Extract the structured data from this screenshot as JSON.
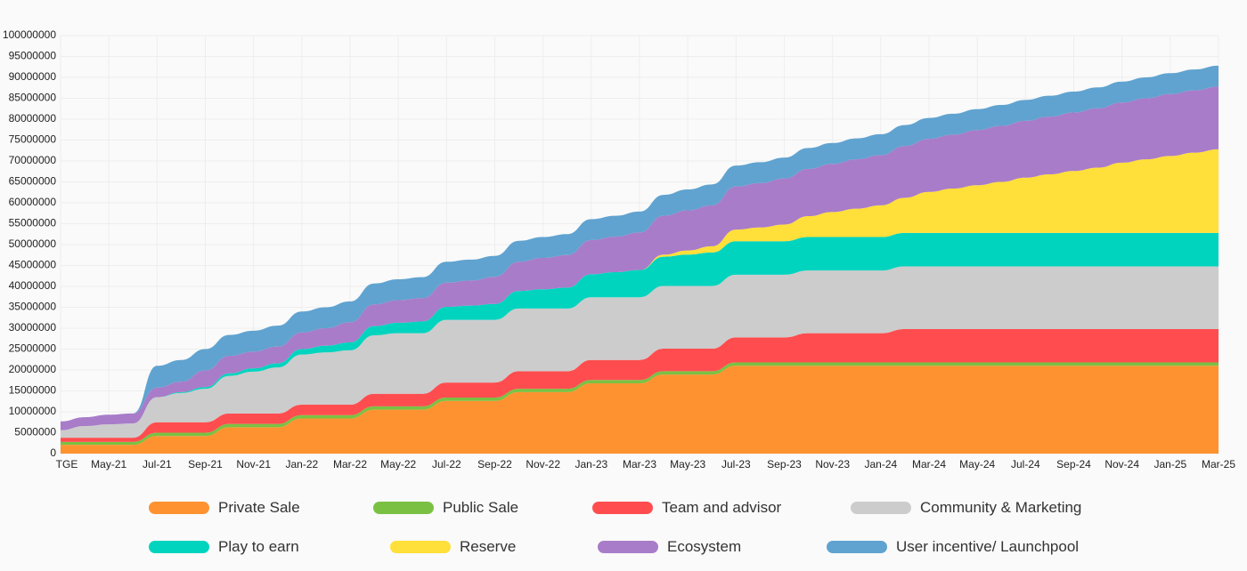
{
  "chart_data": {
    "type": "area",
    "stacked": true,
    "title": "",
    "xlabel": "",
    "ylabel": "",
    "ylim": [
      0,
      100000000
    ],
    "yticks": [
      0,
      5000000,
      10000000,
      15000000,
      20000000,
      25000000,
      30000000,
      35000000,
      40000000,
      45000000,
      50000000,
      55000000,
      60000000,
      65000000,
      70000000,
      75000000,
      80000000,
      85000000,
      90000000,
      95000000,
      100000000
    ],
    "ytick_labels": [
      "0",
      "5000000",
      "10000000",
      "15000000",
      "20000000",
      "25000000",
      "30000000",
      "35000000",
      "40000000",
      "45000000",
      "50000000",
      "55000000",
      "60000000",
      "65000000",
      "70000000",
      "75000000",
      "80000000",
      "85000000",
      "90000000",
      "95000000",
      "100000000"
    ],
    "grid": true,
    "legend_position": "bottom",
    "x": [
      "TGE",
      "Apr-21",
      "May-21",
      "Jun-21",
      "Jul-21",
      "Aug-21",
      "Sep-21",
      "Oct-21",
      "Nov-21",
      "Dec-21",
      "Jan-22",
      "Feb-22",
      "Mar-22",
      "Apr-22",
      "May-22",
      "Jun-22",
      "Jul-22",
      "Aug-22",
      "Sep-22",
      "Oct-22",
      "Nov-22",
      "Dec-22",
      "Jan-23",
      "Feb-23",
      "Mar-23",
      "Apr-23",
      "May-23",
      "Jun-23",
      "Jul-23",
      "Aug-23",
      "Sep-23",
      "Oct-23",
      "Nov-23",
      "Dec-23",
      "Jan-24",
      "Feb-24",
      "Mar-24",
      "Apr-24",
      "May-24",
      "Jun-24",
      "Jul-24",
      "Aug-24",
      "Sep-24",
      "Oct-24",
      "Nov-24",
      "Dec-24",
      "Jan-25",
      "Feb-25",
      "Mar-25"
    ],
    "xtick_labels": [
      "TGE",
      "May-21",
      "Jul-21",
      "Sep-21",
      "Nov-21",
      "Jan-22",
      "Mar-22",
      "May-22",
      "Jul-22",
      "Sep-22",
      "Nov-22",
      "Jan-23",
      "Mar-23",
      "May-23",
      "Jul-23",
      "Sep-23",
      "Nov-23",
      "Jan-24",
      "Mar-24",
      "May-24",
      "Jul-24",
      "Sep-24",
      "Nov-24",
      "Jan-25",
      "Mar-25"
    ],
    "series": [
      {
        "name": "Private Sale",
        "color": "#ff9230",
        "values": [
          2100000,
          2100000,
          2100000,
          2100000,
          4200000,
          4200000,
          4200000,
          6300000,
          6300000,
          6300000,
          8400000,
          8400000,
          8400000,
          10500000,
          10500000,
          10500000,
          12600000,
          12600000,
          12600000,
          14700000,
          14700000,
          14700000,
          16800000,
          16800000,
          16800000,
          18900000,
          18900000,
          18900000,
          21000000,
          21000000,
          21000000,
          21000000,
          21000000,
          21000000,
          21000000,
          21000000,
          21000000,
          21000000,
          21000000,
          21000000,
          21000000,
          21000000,
          21000000,
          21000000,
          21000000,
          21000000,
          21000000,
          21000000,
          21000000
        ]
      },
      {
        "name": "Public Sale",
        "color": "#7ac143",
        "values": [
          700000,
          700000,
          700000,
          700000,
          800000,
          800000,
          800000,
          800000,
          800000,
          800000,
          800000,
          800000,
          800000,
          800000,
          800000,
          800000,
          800000,
          800000,
          800000,
          800000,
          800000,
          800000,
          800000,
          800000,
          800000,
          800000,
          800000,
          800000,
          800000,
          800000,
          800000,
          800000,
          800000,
          800000,
          800000,
          800000,
          800000,
          800000,
          800000,
          800000,
          800000,
          800000,
          800000,
          800000,
          800000,
          800000,
          800000,
          800000,
          800000
        ]
      },
      {
        "name": "Team and advisor",
        "color": "#ff4d4f",
        "values": [
          1000000,
          1000000,
          1000000,
          1000000,
          2500000,
          2500000,
          2500000,
          2500000,
          2500000,
          2500000,
          2500000,
          2500000,
          2500000,
          3000000,
          3000000,
          3000000,
          3600000,
          3600000,
          3600000,
          4200000,
          4200000,
          4200000,
          4800000,
          4800000,
          4800000,
          5400000,
          5400000,
          5400000,
          6000000,
          6000000,
          6000000,
          7000000,
          7000000,
          7000000,
          7000000,
          8000000,
          8000000,
          8000000,
          8000000,
          8000000,
          8000000,
          8000000,
          8000000,
          8000000,
          8000000,
          8000000,
          8000000,
          8000000,
          8000000
        ]
      },
      {
        "name": "Community & Marketing",
        "color": "#cccccc",
        "values": [
          1800000,
          2800000,
          3200000,
          3400000,
          6000000,
          7000000,
          8000000,
          9000000,
          10000000,
          11000000,
          12000000,
          12500000,
          13000000,
          14000000,
          14500000,
          14500000,
          15000000,
          15000000,
          15000000,
          15000000,
          15000000,
          15000000,
          15000000,
          15000000,
          15000000,
          15000000,
          15000000,
          15000000,
          15000000,
          15000000,
          15000000,
          15000000,
          15000000,
          15000000,
          15000000,
          15000000,
          15000000,
          15000000,
          15000000,
          15000000,
          15000000,
          15000000,
          15000000,
          15000000,
          15000000,
          15000000,
          15000000,
          15000000,
          15000000
        ]
      },
      {
        "name": "Play to earn",
        "color": "#00d4be",
        "values": [
          0,
          0,
          0,
          0,
          0,
          200000,
          400000,
          600000,
          800000,
          1000000,
          1300000,
          1600000,
          1900000,
          2200000,
          2500000,
          2800000,
          3100000,
          3400000,
          3800000,
          4200000,
          4600000,
          5000000,
          5500000,
          6000000,
          6500000,
          7000000,
          7500000,
          8000000,
          8000000,
          8000000,
          8000000,
          8000000,
          8000000,
          8000000,
          8000000,
          8000000,
          8000000,
          8000000,
          8000000,
          8000000,
          8000000,
          8000000,
          8000000,
          8000000,
          8000000,
          8000000,
          8000000,
          8000000,
          8000000
        ]
      },
      {
        "name": "Reserve",
        "color": "#ffdf3a",
        "values": [
          0,
          0,
          0,
          0,
          0,
          0,
          0,
          0,
          0,
          0,
          0,
          0,
          0,
          0,
          0,
          0,
          0,
          0,
          0,
          0,
          0,
          0,
          0,
          0,
          0,
          500000,
          1000000,
          1500000,
          2800000,
          3300000,
          4000000,
          5000000,
          6000000,
          6800000,
          7600000,
          8400000,
          9800000,
          10600000,
          11400000,
          12200000,
          13200000,
          14000000,
          14800000,
          15600000,
          16800000,
          17600000,
          18400000,
          19200000,
          20000000
        ]
      },
      {
        "name": "Ecosystem",
        "color": "#a87cc9",
        "values": [
          2100000,
          2100000,
          2300000,
          2400000,
          2300000,
          2500000,
          4000000,
          4200000,
          4000000,
          4000000,
          4000000,
          4200000,
          4800000,
          5200000,
          5400000,
          5600000,
          5800000,
          6000000,
          6500000,
          7000000,
          7500000,
          7800000,
          8200000,
          8500000,
          9000000,
          9300000,
          9600000,
          9800000,
          10300000,
          10600000,
          11000000,
          11300000,
          11500000,
          11800000,
          12000000,
          12400000,
          12700000,
          12900000,
          13200000,
          13400000,
          13600000,
          13800000,
          14000000,
          14200000,
          14400000,
          14600000,
          14800000,
          14900000,
          15000000
        ]
      },
      {
        "name": "User incentive/ Launchpool",
        "color": "#60a3d0",
        "values": [
          0,
          0,
          0,
          0,
          5200000,
          5200000,
          5100000,
          5000000,
          5000000,
          5000000,
          5000000,
          5000000,
          5000000,
          5000000,
          5000000,
          5000000,
          5000000,
          5000000,
          5000000,
          5000000,
          5000000,
          5000000,
          5000000,
          5000000,
          5000000,
          5000000,
          5000000,
          5000000,
          5000000,
          5000000,
          5000000,
          5000000,
          5000000,
          5000000,
          5000000,
          5000000,
          5000000,
          5000000,
          5000000,
          5000000,
          5000000,
          5000000,
          5000000,
          5000000,
          5000000,
          5000000,
          5000000,
          5000000,
          5000000
        ]
      }
    ]
  },
  "legend": [
    {
      "label": "Private Sale",
      "color": "#ff9230"
    },
    {
      "label": "Public Sale",
      "color": "#7ac143"
    },
    {
      "label": "Team and advisor",
      "color": "#ff4d4f"
    },
    {
      "label": "Community & Marketing",
      "color": "#cccccc"
    },
    {
      "label": "Play to earn",
      "color": "#00d4be"
    },
    {
      "label": "Reserve",
      "color": "#ffdf3a"
    },
    {
      "label": "Ecosystem",
      "color": "#a87cc9"
    },
    {
      "label": "User incentive/ Launchpool",
      "color": "#60a3d0"
    }
  ]
}
